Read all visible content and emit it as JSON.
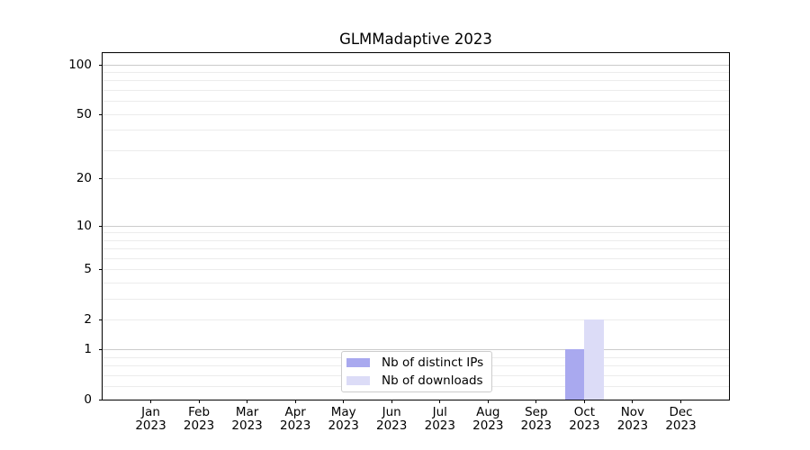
{
  "window": {
    "background": "#ffffff"
  },
  "chart_data": {
    "type": "bar",
    "title": "GLMMadaptive 2023",
    "x_axis": {
      "categories": [
        "Jan",
        "Feb",
        "Mar",
        "Apr",
        "May",
        "Jun",
        "Jul",
        "Aug",
        "Sep",
        "Oct",
        "Nov",
        "Dec"
      ],
      "year_label": "2023"
    },
    "y_axis": {
      "scale": "log1p",
      "ylim": [
        0,
        117
      ],
      "major_ticks": [
        0,
        1,
        2,
        5,
        10,
        20,
        50,
        100
      ],
      "tick_labels": [
        "0",
        "1",
        "2",
        "5",
        "10",
        "20",
        "50",
        "100"
      ],
      "dark_gridlines": [
        1,
        10,
        100
      ],
      "faint_gridlines": [
        0.2,
        0.4,
        0.6,
        0.8,
        2,
        3,
        4,
        5,
        6,
        7,
        8,
        9,
        20,
        30,
        40,
        50,
        60,
        70,
        80,
        90
      ]
    },
    "series": [
      {
        "name": "Nb of distinct IPs",
        "color": "#a9a9ef",
        "values": [
          0,
          0,
          0,
          0,
          0,
          0,
          0,
          0,
          0,
          1,
          0,
          0
        ]
      },
      {
        "name": "Nb of downloads",
        "color": "#dcdcf7",
        "values": [
          0,
          0,
          0,
          0,
          0,
          0,
          0,
          0,
          0,
          2,
          0,
          0
        ]
      }
    ],
    "legend": {
      "position": "lower center",
      "entries": [
        "Nb of distinct IPs",
        "Nb of downloads"
      ]
    },
    "grid": "horizontal",
    "annotations": {
      "october_distinct_ips": 1,
      "october_downloads": 2
    }
  }
}
